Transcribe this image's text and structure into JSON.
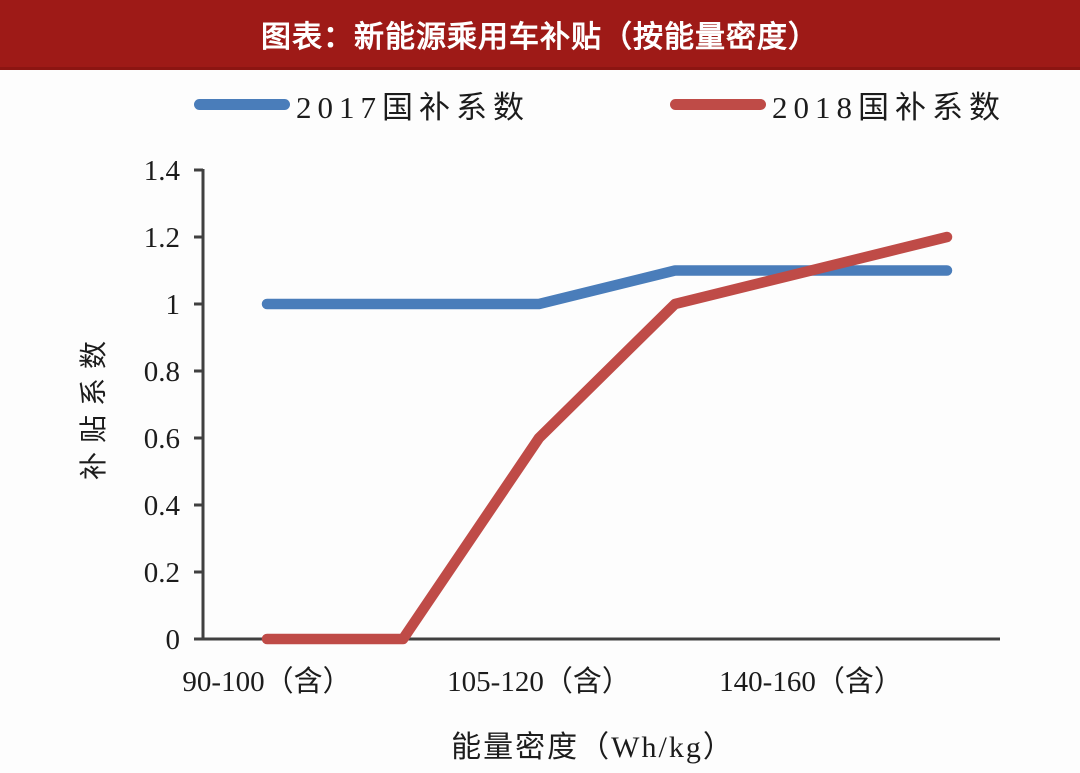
{
  "banner": {
    "bg_color": "#9e1a17",
    "text_color": "#ffffff"
  },
  "legend": [
    {
      "label": "2017国补系数",
      "color": "#4a7dba"
    },
    {
      "label": "2018国补系数",
      "color": "#bf4b47"
    }
  ],
  "chart_data": {
    "type": "line",
    "title": "图表：新能源乘用车补贴（按能量密度）",
    "categories": [
      "90-100（含）",
      "",
      "105-120（含）",
      "",
      "140-160（含）",
      ""
    ],
    "series": [
      {
        "name": "2017国补系数",
        "color": "#4a7dba",
        "values": [
          1.0,
          1.0,
          1.0,
          1.1,
          1.1,
          1.1
        ]
      },
      {
        "name": "2018国补系数",
        "color": "#bf4b47",
        "values": [
          0,
          0,
          0.6,
          1.0,
          1.1,
          1.2
        ]
      }
    ],
    "xlabel": "能量密度（Wh/kg）",
    "ylabel": "补贴系数",
    "ylim": [
      0,
      1.4
    ],
    "yticks": [
      "0",
      "0.2",
      "0.4",
      "0.6",
      "0.8",
      "1",
      "1.2",
      "1.4"
    ],
    "grid": false,
    "legend_position": "top",
    "axis_color": "#404040"
  }
}
